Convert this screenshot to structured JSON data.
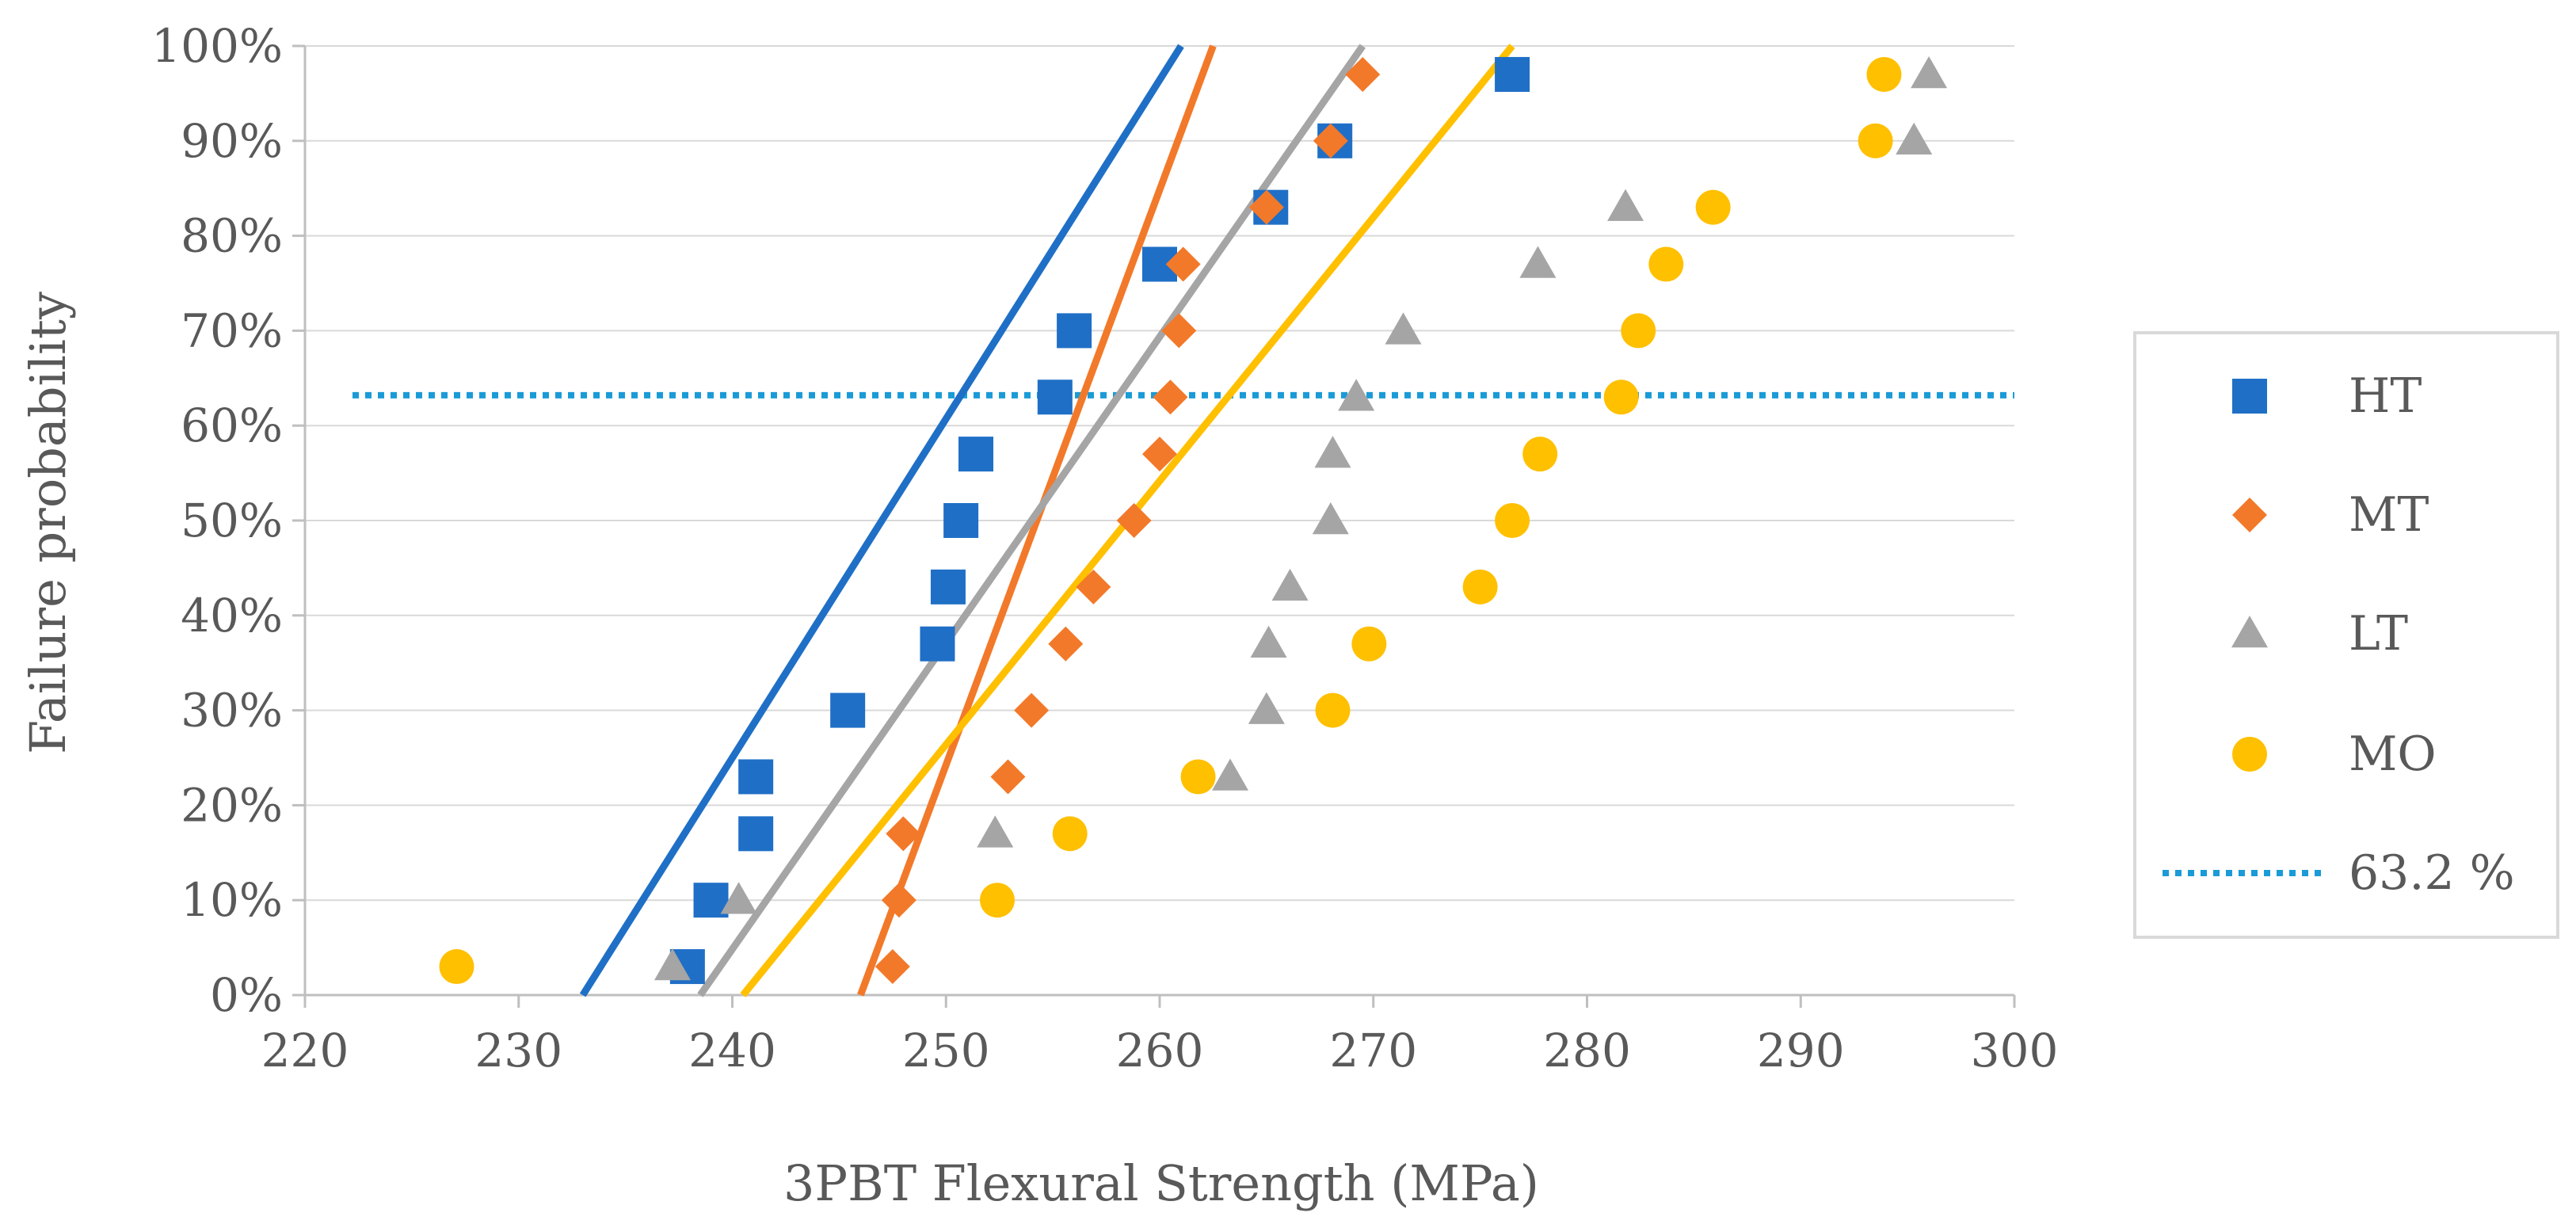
{
  "chart_data": {
    "type": "scatter",
    "xlabel": "3PBT Flexural Strength (MPa)",
    "ylabel": "Failure probability",
    "xlim": [
      220,
      300
    ],
    "ylim": [
      0,
      100
    ],
    "x_ticks": [
      220,
      230,
      240,
      250,
      260,
      270,
      280,
      290,
      300
    ],
    "x_tick_labels": [
      "220",
      "230",
      "240",
      "250",
      "260",
      "270",
      "280",
      "290",
      "300"
    ],
    "y_ticks": [
      0,
      10,
      20,
      30,
      40,
      50,
      60,
      70,
      80,
      90,
      100
    ],
    "y_tick_labels": [
      "0%",
      "10%",
      "20%",
      "30%",
      "40%",
      "50%",
      "60%",
      "70%",
      "80%",
      "90%",
      "100%"
    ],
    "grid": "horizontal",
    "legend_position": "right",
    "series": [
      {
        "name": "HT",
        "marker": "square",
        "color": "#1f6fc6",
        "points": [
          [
            237.9,
            3
          ],
          [
            239.0,
            10
          ],
          [
            241.1,
            17
          ],
          [
            241.1,
            23
          ],
          [
            245.4,
            30
          ],
          [
            249.6,
            37
          ],
          [
            250.1,
            43
          ],
          [
            250.7,
            50
          ],
          [
            251.4,
            57
          ],
          [
            255.1,
            63
          ],
          [
            256.0,
            70
          ],
          [
            260.0,
            77
          ],
          [
            265.2,
            83
          ],
          [
            268.2,
            90
          ],
          [
            276.5,
            97
          ]
        ],
        "trendline": [
          [
            233.0,
            0
          ],
          [
            261.0,
            100
          ]
        ]
      },
      {
        "name": "MT",
        "marker": "diamond",
        "color": "#f2792a",
        "points": [
          [
            247.5,
            3
          ],
          [
            247.8,
            10
          ],
          [
            248.0,
            17
          ],
          [
            252.9,
            23
          ],
          [
            254.0,
            30
          ],
          [
            255.6,
            37
          ],
          [
            256.9,
            43
          ],
          [
            258.8,
            50
          ],
          [
            260.0,
            57
          ],
          [
            260.5,
            63
          ],
          [
            260.9,
            70
          ],
          [
            261.1,
            77
          ],
          [
            265.0,
            83
          ],
          [
            268.0,
            90
          ],
          [
            269.5,
            97
          ]
        ],
        "trendline": [
          [
            246.0,
            0
          ],
          [
            262.5,
            100
          ]
        ]
      },
      {
        "name": "LT",
        "marker": "triangle",
        "color": "#a5a5a5",
        "points": [
          [
            237.2,
            3
          ],
          [
            240.3,
            10
          ],
          [
            252.3,
            17
          ],
          [
            263.3,
            23
          ],
          [
            265.0,
            30
          ],
          [
            265.1,
            37
          ],
          [
            266.1,
            43
          ],
          [
            268.0,
            50
          ],
          [
            268.1,
            57
          ],
          [
            269.2,
            63
          ],
          [
            271.4,
            70
          ],
          [
            277.7,
            77
          ],
          [
            281.8,
            83
          ],
          [
            295.3,
            90
          ],
          [
            296.0,
            97
          ]
        ],
        "trendline": [
          [
            238.5,
            0
          ],
          [
            269.5,
            100
          ]
        ]
      },
      {
        "name": "MO",
        "marker": "circle",
        "color": "#ffc000",
        "points": [
          [
            227.1,
            3
          ],
          [
            252.4,
            10
          ],
          [
            255.8,
            17
          ],
          [
            261.8,
            23
          ],
          [
            268.1,
            30
          ],
          [
            269.8,
            37
          ],
          [
            275.0,
            43
          ],
          [
            276.5,
            50
          ],
          [
            277.8,
            57
          ],
          [
            281.6,
            63
          ],
          [
            282.4,
            70
          ],
          [
            283.7,
            77
          ],
          [
            285.9,
            83
          ],
          [
            293.5,
            90
          ],
          [
            293.9,
            97
          ]
        ],
        "trendline": [
          [
            240.5,
            0
          ],
          [
            276.5,
            100
          ]
        ]
      }
    ],
    "reference_line": {
      "name": "63.2 %",
      "y": 63.2,
      "style": "dotted",
      "color": "#1a9bd7"
    }
  }
}
